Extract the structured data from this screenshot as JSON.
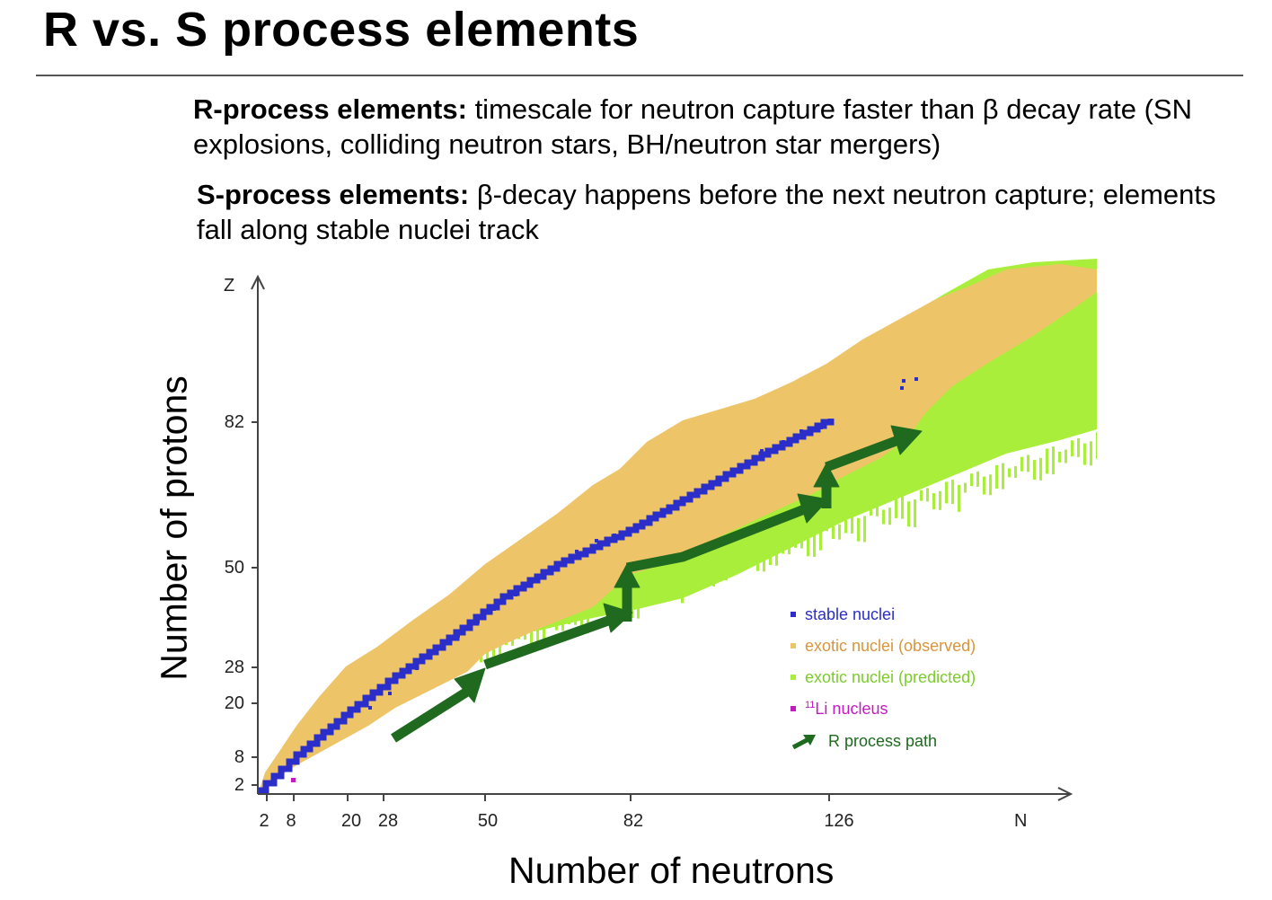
{
  "title": "R vs. S process elements",
  "paragraphs": {
    "r_bold": "R-process elements:",
    "r_text": " timescale for neutron capture faster than β decay rate (SN explosions, colliding neutron stars, BH/neutron star mergers)",
    "s_bold": "S-process elements:",
    "s_text": " β-decay happens before the next neutron capture; elements fall along stable nuclei track"
  },
  "chart": {
    "y_title": "Number of protons",
    "x_title": "Number of neutrons",
    "y_letter": "Z",
    "x_letter": "N",
    "y_ticks": [
      "2",
      "8",
      "20",
      "28",
      "50",
      "82"
    ],
    "x_ticks": [
      "2",
      "8",
      "20",
      "28",
      "50",
      "82",
      "126"
    ],
    "legend": {
      "stable": "stable nuclei",
      "observed": "exotic nuclei (observed)",
      "predicted": "exotic nuclei (predicted)",
      "li_sup": "11",
      "li_text": "Li nucleus",
      "rpath": "R process path"
    },
    "colors": {
      "stable": "#2b2ec8",
      "observed": "#eec468",
      "predicted": "#a9ee3a",
      "li": "#c01cc0",
      "rpath": "#1f6a1f",
      "axis": "#444444"
    }
  }
}
